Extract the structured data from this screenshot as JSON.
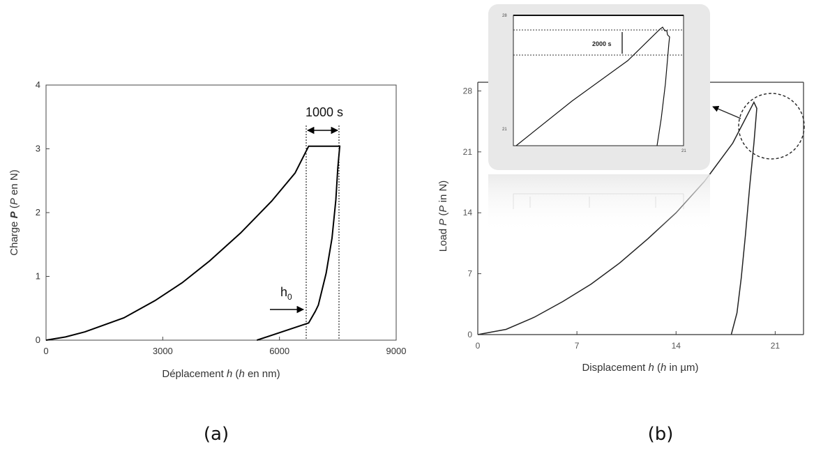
{
  "chart_data": [
    {
      "type": "line",
      "panel_label": "(a)",
      "xlabel": "Déplacement h (h en nm)",
      "ylabel": "Charge P (P en N)",
      "xlim": [
        0,
        9000
      ],
      "ylim": [
        0,
        4
      ],
      "xticks": [
        "0",
        "3000",
        "6000",
        "9000"
      ],
      "yticks": [
        "0",
        "1",
        "2",
        "3",
        "4"
      ],
      "grid": false,
      "series": [
        {
          "x": [
            0,
            500,
            1000,
            2000,
            2800,
            3500,
            4200,
            5000,
            5800,
            6400,
            6750,
            7550,
            7500,
            7450,
            7350,
            7200,
            7000,
            6920,
            6750,
            5420
          ],
          "y": [
            0,
            0.05,
            0.13,
            0.35,
            0.62,
            0.9,
            1.24,
            1.68,
            2.18,
            2.62,
            3.04,
            3.04,
            2.7,
            2.2,
            1.6,
            1.05,
            0.55,
            0.45,
            0.27,
            0
          ]
        }
      ],
      "annotations": [
        {
          "text": "1000 s",
          "x_start": 6750,
          "x_end": 7550,
          "y": 3.3
        },
        {
          "text": "h0",
          "x": 6750,
          "y": 0.45
        }
      ]
    },
    {
      "type": "line",
      "panel_label": "(b)",
      "xlabel": "Displacement h (h in µm)",
      "ylabel": "Load P (P in N)",
      "xlim": [
        0,
        23
      ],
      "ylim": [
        0,
        29
      ],
      "xticks": [
        "0",
        "7",
        "14",
        "21"
      ],
      "yticks": [
        "0",
        "7",
        "14",
        "21",
        "28"
      ],
      "grid": false,
      "series": [
        {
          "x": [
            0,
            2,
            4,
            6,
            8,
            10,
            12,
            14,
            16,
            18,
            19.5,
            19.7,
            19.5,
            19.2,
            18.9,
            18.6,
            18.3,
            17.9
          ],
          "y": [
            0,
            0.6,
            2.0,
            3.8,
            5.8,
            8.2,
            11.0,
            14.0,
            17.6,
            22.0,
            26.7,
            26.0,
            22.0,
            17.0,
            11.5,
            6.5,
            2.5,
            0
          ]
        }
      ],
      "inset": {
        "label": "2000 s",
        "tick_left_top": "28",
        "tick_left_bottom": "21",
        "tick_bottom_right": "21"
      }
    }
  ]
}
